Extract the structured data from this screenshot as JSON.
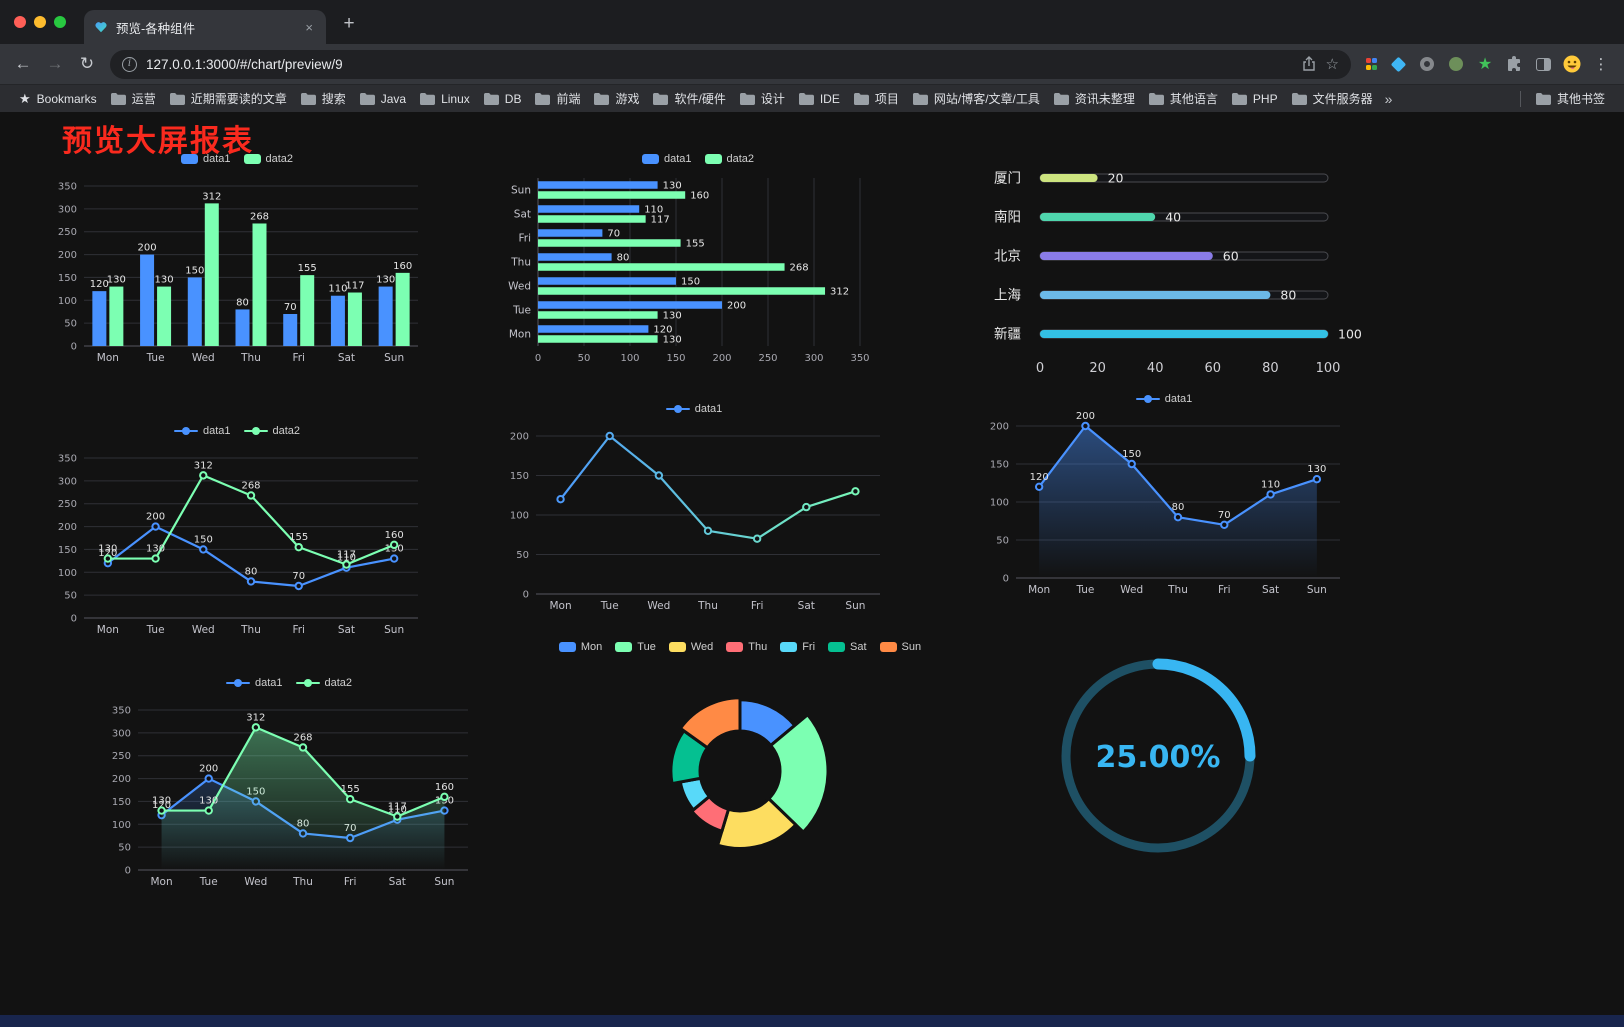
{
  "browser": {
    "tab": {
      "title": "预览-各种组件"
    },
    "url": "127.0.0.1:3000/#/chart/preview/9",
    "bookmarks_label": "Bookmarks",
    "bookmarks": [
      "运营",
      "近期需要读的文章",
      "搜索",
      "Java",
      "Linux",
      "DB",
      "前端",
      "游戏",
      "软件/硬件",
      "设计",
      "IDE",
      "项目",
      "网站/博客/文章/工具",
      "资讯未整理",
      "其他语言",
      "PHP",
      "文件服务器"
    ],
    "bookmarks_overflow": "»",
    "other_bookmarks": "其他书签",
    "icons": {
      "tab_favicon": "heart-icon",
      "site_info": "info-icon",
      "address_right": [
        "share-icon",
        "star-icon"
      ],
      "nav": [
        "arrow-left-icon",
        "arrow-right-icon",
        "reload-icon"
      ],
      "extensions": [
        "grid-icon",
        "diamond-icon",
        "ring-icon",
        "avatar-circle-icon",
        "green-star-icon",
        "puzzle-icon",
        "side-panel-icon",
        "profile-emoji-icon",
        "kebab-menu-icon"
      ],
      "bookmark_folder": "folder-icon",
      "window_controls": [
        "close",
        "minimize",
        "zoom"
      ]
    }
  },
  "page": {
    "title": "预览大屏报表",
    "title_color": "#fa2a1e",
    "background": "#121212"
  },
  "chart_data": [
    {
      "id": "grouped-bar",
      "type": "bar",
      "orientation": "vertical",
      "legend": [
        "data1",
        "data2"
      ],
      "legend_marker": "rect",
      "categories": [
        "Mon",
        "Tue",
        "Wed",
        "Thu",
        "Fri",
        "Sat",
        "Sun"
      ],
      "series": [
        {
          "name": "data1",
          "color": "#4992ff",
          "values": [
            120,
            200,
            150,
            80,
            70,
            110,
            130
          ]
        },
        {
          "name": "data2",
          "color": "#7cffb2",
          "values": [
            130,
            130,
            312,
            268,
            155,
            117,
            160
          ]
        }
      ],
      "ylim": [
        0,
        350
      ],
      "yticks": [
        0,
        50,
        100,
        150,
        200,
        250,
        300,
        350
      ],
      "show_labels": true,
      "grid": true,
      "legend_position": "top"
    },
    {
      "id": "horizontal-bar",
      "type": "bar",
      "orientation": "horizontal",
      "legend": [
        "data1",
        "data2"
      ],
      "legend_marker": "rect",
      "categories": [
        "Mon",
        "Tue",
        "Wed",
        "Thu",
        "Fri",
        "Sat",
        "Sun"
      ],
      "series": [
        {
          "name": "data1",
          "color": "#4992ff",
          "values": [
            120,
            200,
            150,
            80,
            70,
            110,
            130
          ]
        },
        {
          "name": "data2",
          "color": "#7cffb2",
          "values": [
            130,
            130,
            312,
            268,
            155,
            117,
            160
          ]
        }
      ],
      "xlim": [
        0,
        350
      ],
      "xticks": [
        0,
        50,
        100,
        150,
        200,
        250,
        300,
        350
      ],
      "show_labels": true,
      "grid": true,
      "legend_position": "top"
    },
    {
      "id": "progress-bars",
      "type": "bar",
      "variant": "progress",
      "items": [
        {
          "label": "厦门",
          "value": 20,
          "color": "#cde47f"
        },
        {
          "label": "南阳",
          "value": 40,
          "color": "#4fd6ad"
        },
        {
          "label": "北京",
          "value": 60,
          "color": "#8a7ce8"
        },
        {
          "label": "上海",
          "value": 80,
          "color": "#6cb9e8"
        },
        {
          "label": "新疆",
          "value": 100,
          "color": "#33c0e4"
        }
      ],
      "xlim": [
        0,
        100
      ],
      "xticks": [
        0,
        20,
        40,
        60,
        80,
        100
      ]
    },
    {
      "id": "line-two-series",
      "type": "line",
      "legend": [
        "data1",
        "data2"
      ],
      "legend_marker": "line",
      "categories": [
        "Mon",
        "Tue",
        "Wed",
        "Thu",
        "Fri",
        "Sat",
        "Sun"
      ],
      "series": [
        {
          "name": "data1",
          "color": "#4992ff",
          "values": [
            120,
            200,
            150,
            80,
            70,
            110,
            130
          ]
        },
        {
          "name": "data2",
          "color": "#7cffb2",
          "values": [
            130,
            130,
            312,
            268,
            155,
            117,
            160
          ]
        }
      ],
      "ylim": [
        0,
        350
      ],
      "yticks": [
        0,
        50,
        100,
        150,
        200,
        250,
        300,
        350
      ],
      "show_labels": true,
      "legend_position": "top"
    },
    {
      "id": "line-gradient",
      "type": "line",
      "legend": [
        "data1"
      ],
      "legend_marker": "line",
      "categories": [
        "Mon",
        "Tue",
        "Wed",
        "Thu",
        "Fri",
        "Sat",
        "Sun"
      ],
      "series": [
        {
          "name": "data1",
          "color": "#4992ff",
          "gradient": [
            "#4992ff",
            "#7cffb2"
          ],
          "values": [
            120,
            200,
            150,
            80,
            70,
            110,
            130
          ]
        }
      ],
      "ylim": [
        0,
        200
      ],
      "yticks": [
        0,
        50,
        100,
        150,
        200
      ],
      "show_labels": false,
      "legend_position": "top"
    },
    {
      "id": "line-area",
      "type": "line",
      "legend": [
        "data1"
      ],
      "legend_marker": "line",
      "categories": [
        "Mon",
        "Tue",
        "Wed",
        "Thu",
        "Fri",
        "Sat",
        "Sun"
      ],
      "series": [
        {
          "name": "data1",
          "color": "#4992ff",
          "values": [
            120,
            200,
            150,
            80,
            70,
            110,
            130
          ],
          "area": true,
          "area_opacity": 0.45
        }
      ],
      "ylim": [
        0,
        200
      ],
      "yticks": [
        0,
        50,
        100,
        150,
        200
      ],
      "show_labels": true,
      "legend_position": "top"
    },
    {
      "id": "line-area-two-series",
      "type": "line",
      "legend": [
        "data1",
        "data2"
      ],
      "legend_marker": "line",
      "categories": [
        "Mon",
        "Tue",
        "Wed",
        "Thu",
        "Fri",
        "Sat",
        "Sun"
      ],
      "series": [
        {
          "name": "data1",
          "color": "#4992ff",
          "values": [
            120,
            200,
            150,
            80,
            70,
            110,
            130
          ],
          "area": true,
          "area_opacity": 0.22
        },
        {
          "name": "data2",
          "color": "#7cffb2",
          "values": [
            130,
            130,
            312,
            268,
            155,
            117,
            160
          ],
          "area": true,
          "area_opacity": 0.4
        }
      ],
      "ylim": [
        0,
        350
      ],
      "yticks": [
        0,
        50,
        100,
        150,
        200,
        250,
        300,
        350
      ],
      "show_labels": true,
      "legend_position": "top"
    },
    {
      "id": "rose-pie",
      "type": "pie",
      "rose": true,
      "legend": [
        "Mon",
        "Tue",
        "Wed",
        "Thu",
        "Fri",
        "Sat",
        "Sun"
      ],
      "legend_marker": "rect",
      "labels": [
        "Mon",
        "Tue",
        "Wed",
        "Thu",
        "Fri",
        "Sat",
        "Sun"
      ],
      "values": [
        120,
        200,
        150,
        80,
        70,
        110,
        130
      ],
      "colors": [
        "#4992ff",
        "#7cffb2",
        "#fddd60",
        "#ff6e76",
        "#58d9f9",
        "#05c091",
        "#ff8a45"
      ],
      "inner_radius": 40,
      "legend_position": "top"
    },
    {
      "id": "gauge",
      "type": "gauge",
      "percent": 25,
      "label": "25.00%",
      "color": "#38b6f2",
      "track_color": "#1e5064"
    }
  ]
}
